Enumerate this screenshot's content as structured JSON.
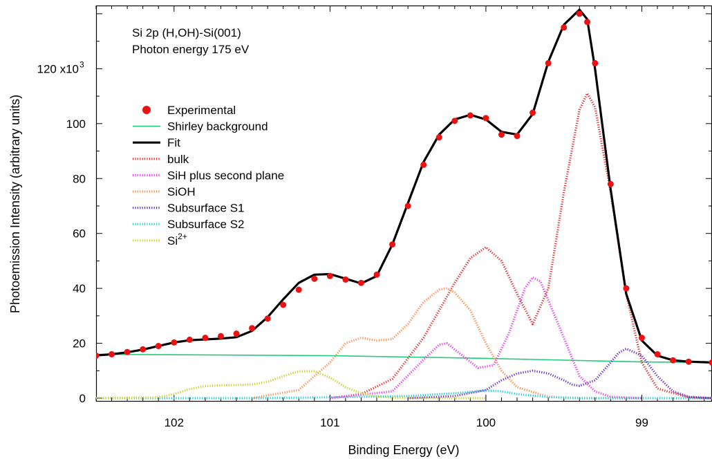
{
  "chart_data": {
    "type": "line",
    "info_lines": [
      "Si 2p (H,OH)-Si(001)",
      "Photon energy 175 eV"
    ],
    "xlabel": "Binding Energy (eV)",
    "ylabel": "Photoemission Intensity (arbitrary units)",
    "xlim": [
      102.5,
      98.55
    ],
    "ylim": [
      -1000,
      143000
    ],
    "x_reversed": true,
    "x_ticks": [
      102,
      101,
      100,
      99
    ],
    "x_tick_labels": [
      "102",
      "101",
      "100",
      "99"
    ],
    "y_ticks": [
      0,
      20000,
      40000,
      60000,
      80000,
      100000,
      120000
    ],
    "y_tick_labels": [
      "0",
      "20",
      "40",
      "60",
      "80",
      "100",
      "120 x10"
    ],
    "y_exponent": "3",
    "legend_position": "upper-left",
    "series": [
      {
        "name": "Experimental",
        "style": "dots",
        "color": "#ee1111",
        "x": [
          102.5,
          102.4,
          102.3,
          102.2,
          102.1,
          102.0,
          101.9,
          101.8,
          101.7,
          101.6,
          101.5,
          101.4,
          101.3,
          101.2,
          101.1,
          101.0,
          100.9,
          100.8,
          100.7,
          100.6,
          100.5,
          100.4,
          100.3,
          100.2,
          100.1,
          100.0,
          99.9,
          99.8,
          99.7,
          99.6,
          99.5,
          99.4,
          99.35,
          99.3,
          99.2,
          99.1,
          99.0,
          98.9,
          98.8,
          98.7,
          98.55
        ],
        "y": [
          15500,
          16000,
          16800,
          17800,
          19000,
          20300,
          21300,
          22000,
          22600,
          23500,
          25500,
          29000,
          34000,
          39500,
          43500,
          44500,
          43200,
          42000,
          45000,
          56000,
          70000,
          85000,
          95000,
          101000,
          103000,
          102000,
          96000,
          95500,
          104000,
          122000,
          135000,
          140000,
          137000,
          122000,
          78000,
          40000,
          22000,
          16000,
          13800,
          13300,
          13000
        ]
      },
      {
        "name": "Shirley background",
        "style": "solid",
        "color": "#22cc77",
        "x": [
          102.5,
          101.0,
          100.0,
          99.0,
          98.55
        ],
        "y": [
          16000,
          15500,
          14500,
          13200,
          13000
        ]
      },
      {
        "name": "Fit",
        "style": "solid-thick",
        "color": "#000000",
        "x": [
          102.5,
          102.4,
          102.3,
          102.2,
          102.1,
          102.0,
          101.9,
          101.8,
          101.7,
          101.6,
          101.5,
          101.4,
          101.3,
          101.2,
          101.1,
          101.0,
          100.9,
          100.8,
          100.7,
          100.6,
          100.5,
          100.4,
          100.3,
          100.2,
          100.1,
          100.0,
          99.9,
          99.8,
          99.7,
          99.6,
          99.5,
          99.4,
          99.35,
          99.3,
          99.2,
          99.1,
          99.0,
          98.9,
          98.8,
          98.7,
          98.55
        ],
        "y": [
          15600,
          16000,
          16700,
          17700,
          19000,
          20300,
          21100,
          21400,
          21700,
          22200,
          24500,
          29500,
          36000,
          42000,
          45000,
          45200,
          43500,
          41800,
          44500,
          56000,
          71000,
          86000,
          96000,
          101500,
          103200,
          101500,
          97000,
          96000,
          103500,
          122500,
          136000,
          141500,
          138000,
          120000,
          76000,
          38000,
          21000,
          15500,
          13800,
          13300,
          13000
        ]
      },
      {
        "name": "bulk",
        "style": "dotted",
        "color": "#ee2222",
        "x": [
          101.0,
          100.8,
          100.6,
          100.4,
          100.2,
          100.1,
          100.0,
          99.9,
          99.8,
          99.7,
          99.6,
          99.5,
          99.4,
          99.35,
          99.3,
          99.2,
          99.1,
          99.0,
          98.9,
          98.7,
          98.55
        ],
        "y": [
          0,
          1500,
          7000,
          22000,
          42000,
          51000,
          55000,
          50000,
          38000,
          27000,
          40000,
          75000,
          105000,
          111000,
          106000,
          75000,
          38000,
          13000,
          3500,
          300,
          0
        ]
      },
      {
        "name": "SiH plus second plane",
        "style": "dotted",
        "color": "#ee33ee",
        "x": [
          101.0,
          100.6,
          100.4,
          100.3,
          100.25,
          100.15,
          100.05,
          99.95,
          99.85,
          99.75,
          99.7,
          99.65,
          99.5,
          99.4,
          99.3,
          99.2,
          99.0
        ],
        "y": [
          0,
          2500,
          14000,
          19500,
          20000,
          15500,
          11000,
          12000,
          24000,
          40000,
          44000,
          42500,
          22000,
          8000,
          2500,
          500,
          0
        ]
      },
      {
        "name": "SiOH",
        "style": "dotted",
        "color": "#ff8844",
        "x": [
          101.5,
          101.2,
          101.0,
          100.9,
          100.8,
          100.7,
          100.6,
          100.5,
          100.4,
          100.3,
          100.25,
          100.2,
          100.1,
          100.0,
          99.9,
          99.8,
          99.6,
          99.4,
          99.0
        ],
        "y": [
          0,
          3000,
          13000,
          20000,
          22000,
          21000,
          21500,
          27000,
          35000,
          39500,
          40000,
          38500,
          32000,
          20000,
          10000,
          4000,
          500,
          0,
          0
        ]
      },
      {
        "name": "Subsurface S1",
        "style": "dotted",
        "color": "#6622cc",
        "x": [
          100.5,
          100.2,
          100.0,
          99.9,
          99.8,
          99.7,
          99.6,
          99.5,
          99.45,
          99.4,
          99.3,
          99.2,
          99.15,
          99.1,
          99.0,
          98.9,
          98.8,
          98.7,
          98.55
        ],
        "y": [
          0,
          800,
          3000,
          6500,
          9000,
          10000,
          9000,
          6500,
          5000,
          4500,
          6500,
          13000,
          16500,
          18000,
          15500,
          8000,
          2500,
          500,
          0
        ]
      },
      {
        "name": "Subsurface S2",
        "style": "dotted",
        "color": "#11ccdd",
        "x": [
          102.5,
          101.5,
          101.0,
          100.5,
          100.2,
          100.0,
          99.9,
          99.8,
          99.6,
          99.4,
          99.0,
          98.55
        ],
        "y": [
          0,
          0,
          300,
          800,
          1800,
          2800,
          2500,
          1500,
          400,
          0,
          0,
          0
        ]
      },
      {
        "name": "Si2+",
        "name_base": "Si",
        "name_sup": "2+",
        "style": "dotted",
        "color": "#cccc22",
        "x": [
          102.5,
          102.1,
          102.0,
          101.9,
          101.8,
          101.7,
          101.6,
          101.5,
          101.4,
          101.3,
          101.2,
          101.1,
          101.0,
          100.9,
          100.8,
          100.7,
          100.6,
          100.4,
          100.0
        ],
        "y": [
          0,
          300,
          1500,
          3300,
          4400,
          4700,
          4800,
          5000,
          6000,
          8000,
          9800,
          9800,
          7500,
          4000,
          1800,
          600,
          150,
          0,
          0
        ]
      }
    ]
  }
}
